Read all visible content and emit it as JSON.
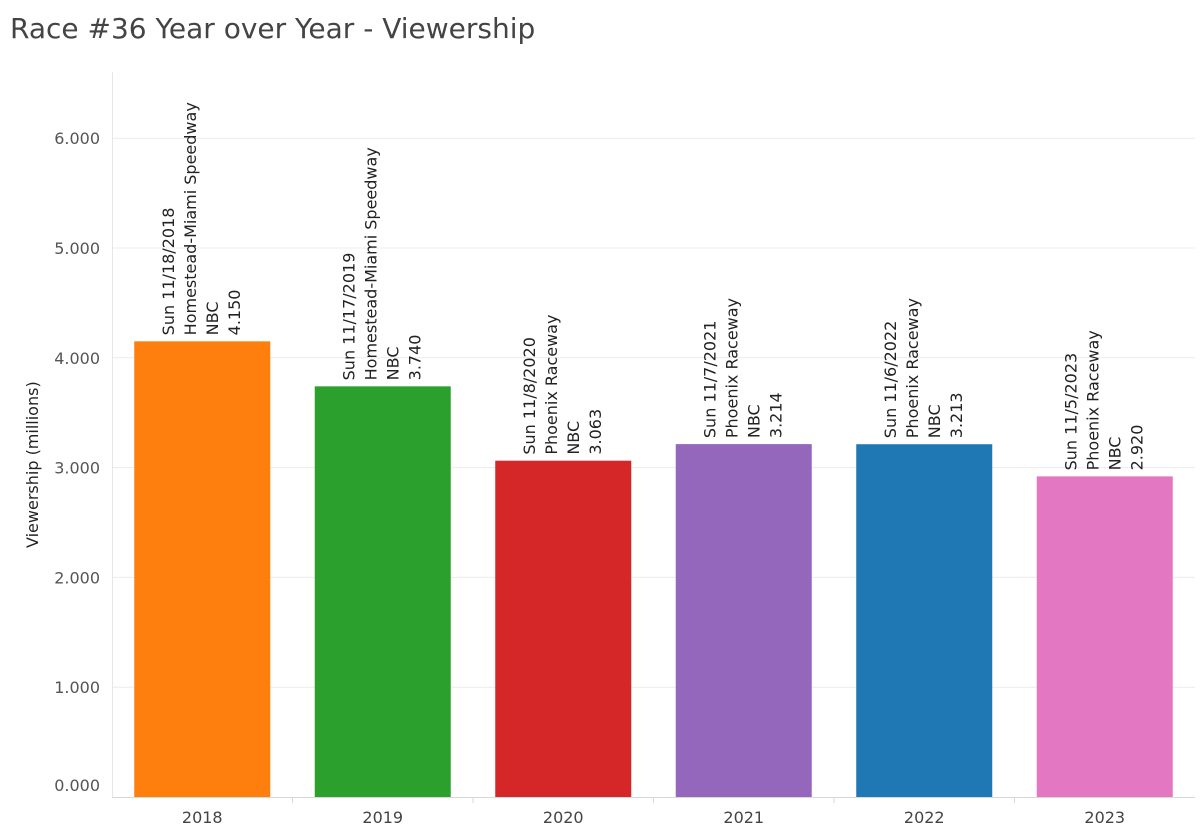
{
  "chart_data": {
    "type": "bar",
    "title": "Race #36 Year over Year - Viewership",
    "xlabel": "",
    "ylabel": "Viewership (millions)",
    "ylim": [
      0,
      6.6
    ],
    "yticks": [
      0,
      1,
      2,
      3,
      4,
      5,
      6
    ],
    "ytick_labels": [
      "0.000",
      "1.000",
      "2.000",
      "3.000",
      "4.000",
      "5.000",
      "6.000"
    ],
    "grid": true,
    "categories": [
      "2018",
      "2019",
      "2020",
      "2021",
      "2022",
      "2023"
    ],
    "values": [
      4.15,
      3.74,
      3.063,
      3.214,
      3.213,
      2.92
    ],
    "colors": [
      "#ff7f0e",
      "#2ca02c",
      "#d62728",
      "#9467bd",
      "#1f77b4",
      "#e377c2"
    ],
    "bar_labels": [
      [
        "Sun 11/18/2018",
        "Homestead-Miami Speedway",
        "NBC",
        "4.150"
      ],
      [
        "Sun 11/17/2019",
        "Homestead-Miami Speedway",
        "NBC",
        "3.740"
      ],
      [
        "Sun 11/8/2020",
        "Phoenix Raceway",
        "NBC",
        "3.063"
      ],
      [
        "Sun 11/7/2021",
        "Phoenix Raceway",
        "NBC",
        "3.214"
      ],
      [
        "Sun 11/6/2022",
        "Phoenix Raceway",
        "NBC",
        "3.213"
      ],
      [
        "Sun 11/5/2023",
        "Phoenix Raceway",
        "NBC",
        "2.920"
      ]
    ]
  }
}
